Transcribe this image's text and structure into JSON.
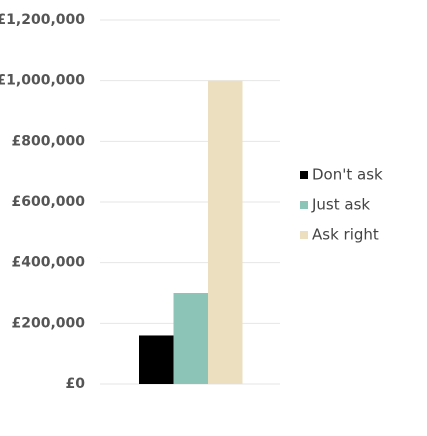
{
  "chart_data": {
    "type": "bar",
    "categories": [
      null
    ],
    "series": [
      {
        "name": "Don't ask",
        "color": "#000000",
        "values": [
          160000
        ]
      },
      {
        "name": "Just ask",
        "color": "#8cc4b7",
        "values": [
          300000
        ]
      },
      {
        "name": "Ask right",
        "color": "#ecdfc0",
        "values": [
          1000000
        ]
      }
    ],
    "ylim": [
      0,
      1200000
    ],
    "yticks": [
      {
        "value": 0,
        "label": "£0"
      },
      {
        "value": 200000,
        "label": "£200,000"
      },
      {
        "value": 400000,
        "label": "£400,000"
      },
      {
        "value": 600000,
        "label": "£600,000"
      },
      {
        "value": 800000,
        "label": "£800,000"
      },
      {
        "value": 1000000,
        "label": "£1,000,000"
      },
      {
        "value": 1200000,
        "label": "£1,200,000"
      }
    ],
    "grid": true,
    "legend": "right"
  }
}
